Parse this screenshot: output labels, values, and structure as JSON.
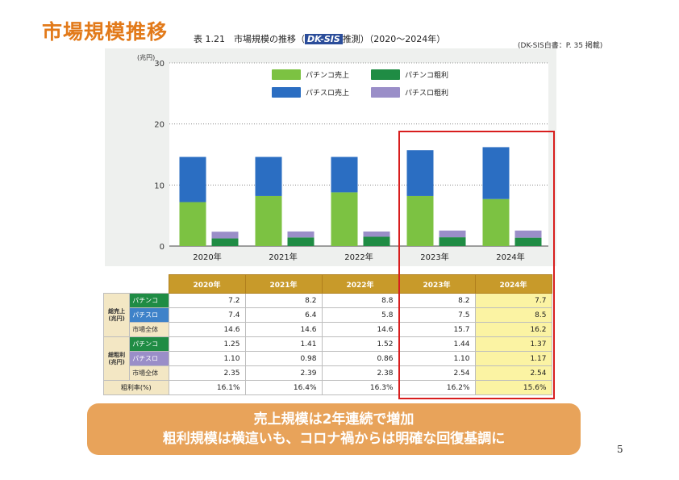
{
  "slide_title": "市場規模推移",
  "caption": {
    "prefix": "表 1.21　市場規模の推移（",
    "logo": "DK-SIS",
    "suffix": "推測）（2020～2024年）"
  },
  "source_note": "(DK-SIS白書：P. 35  掲載)",
  "chart_data": {
    "type": "bar",
    "categories": [
      "2020年",
      "2021年",
      "2022年",
      "2023年",
      "2024年"
    ],
    "ylabel": "(兆円)",
    "ylim": [
      0,
      30
    ],
    "yticks": [
      0,
      10,
      20,
      30
    ],
    "grid": true,
    "legend_position": "top-center",
    "stacked": true,
    "groups": [
      {
        "name": "sales",
        "series": [
          {
            "name": "パチンコ売上",
            "color": "#7cc242",
            "values": [
              7.2,
              8.2,
              8.8,
              8.2,
              7.7
            ]
          },
          {
            "name": "パチスロ売上",
            "color": "#2b6ec2",
            "values": [
              7.4,
              6.4,
              5.8,
              7.5,
              8.5
            ]
          }
        ]
      },
      {
        "name": "gross_profit",
        "series": [
          {
            "name": "パチンコ粗利",
            "color": "#1f8c44",
            "values": [
              1.25,
              1.41,
              1.52,
              1.44,
              1.37
            ]
          },
          {
            "name": "パチスロ粗利",
            "color": "#9a8ec8",
            "values": [
              1.1,
              0.98,
              0.86,
              1.1,
              1.17
            ]
          }
        ]
      }
    ],
    "legend": [
      {
        "label": "パチンコ売上",
        "color": "#7cc242"
      },
      {
        "label": "パチンコ粗利",
        "color": "#1f8c44"
      },
      {
        "label": "パチスロ売上",
        "color": "#2b6ec2"
      },
      {
        "label": "パチスロ粗利",
        "color": "#9a8ec8"
      }
    ]
  },
  "table": {
    "years": [
      "2020年",
      "2021年",
      "2022年",
      "2023年",
      "2024年"
    ],
    "sales_group": "総売上\n(兆円)",
    "profit_group": "総粗利\n(兆円)",
    "rows": [
      {
        "label": "パチンコ",
        "kind": "pachinko",
        "values": [
          "7.2",
          "8.2",
          "8.8",
          "8.2",
          "7.7"
        ]
      },
      {
        "label": "パチスロ",
        "kind": "pachislo",
        "values": [
          "7.4",
          "6.4",
          "5.8",
          "7.5",
          "8.5"
        ]
      },
      {
        "label": "市場全体",
        "kind": "total",
        "values": [
          "14.6",
          "14.6",
          "14.6",
          "15.7",
          "16.2"
        ]
      },
      {
        "label": "パチンコ",
        "kind": "pachinko",
        "values": [
          "1.25",
          "1.41",
          "1.52",
          "1.44",
          "1.37"
        ]
      },
      {
        "label": "パチスロ",
        "kind": "pachislo-gp",
        "values": [
          "1.10",
          "0.98",
          "0.86",
          "1.10",
          "1.17"
        ]
      },
      {
        "label": "市場全体",
        "kind": "total",
        "values": [
          "2.35",
          "2.39",
          "2.38",
          "2.54",
          "2.54"
        ]
      }
    ],
    "rate_label": "粗利率(%)",
    "rate_values": [
      "16.1%",
      "16.4%",
      "16.3%",
      "16.2%",
      "15.6%"
    ]
  },
  "banner": {
    "line1": "売上規模は2年連続で増加",
    "line2": "粗利規模は横這いも、コロナ禍からは明確な回復基調に"
  },
  "page_number": "5"
}
